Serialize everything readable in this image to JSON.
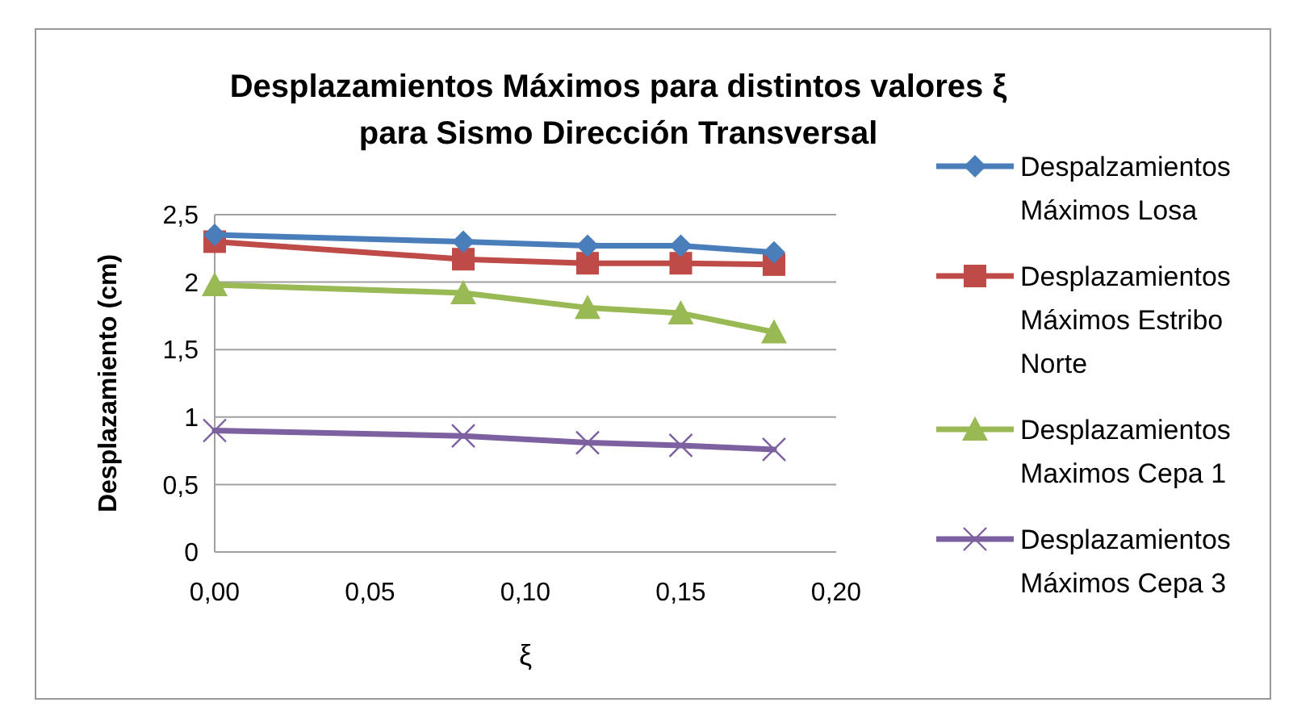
{
  "chart_data": {
    "type": "line",
    "title": "Desplazamientos Máximos para distintos valores ξ para Sismo Dirección Transversal",
    "xlabel": "ξ",
    "ylabel": "Desplazamiento  (cm)",
    "x": [
      0,
      0.08,
      0.12,
      0.15,
      0.18
    ],
    "series": [
      {
        "name": "Despalzamientos Máximos Losa",
        "color": "#4a7ebb",
        "marker": "diamond",
        "values": [
          2.35,
          2.3,
          2.27,
          2.27,
          2.22
        ]
      },
      {
        "name": "Desplazamientos Máximos Estribo Norte",
        "color": "#be4b48",
        "marker": "square",
        "values": [
          2.3,
          2.17,
          2.14,
          2.14,
          2.13
        ]
      },
      {
        "name": "Desplazamientos Maximos Cepa 1",
        "color": "#98b954",
        "marker": "triangle",
        "values": [
          1.98,
          1.92,
          1.81,
          1.77,
          1.63
        ]
      },
      {
        "name": "Desplazamientos Máximos Cepa 3",
        "color": "#7d60a0",
        "marker": "cross",
        "values": [
          0.9,
          0.86,
          0.81,
          0.79,
          0.76
        ]
      }
    ],
    "xlim": [
      0,
      0.2
    ],
    "xticks": [
      {
        "value": 0,
        "label": "0,00"
      },
      {
        "value": 0.05,
        "label": "0,05"
      },
      {
        "value": 0.1,
        "label": "0,10"
      },
      {
        "value": 0.15,
        "label": "0,15"
      },
      {
        "value": 0.2,
        "label": "0,20"
      }
    ],
    "ylim": [
      0,
      2.5
    ],
    "yticks": [
      0,
      {
        "value": 0.5,
        "label": "0,5"
      },
      1,
      {
        "value": 1.5,
        "label": "1,5"
      },
      2,
      {
        "value": 2.5,
        "label": "2,5"
      }
    ],
    "grid": "y",
    "legend": "right",
    "line_style": "solid"
  }
}
